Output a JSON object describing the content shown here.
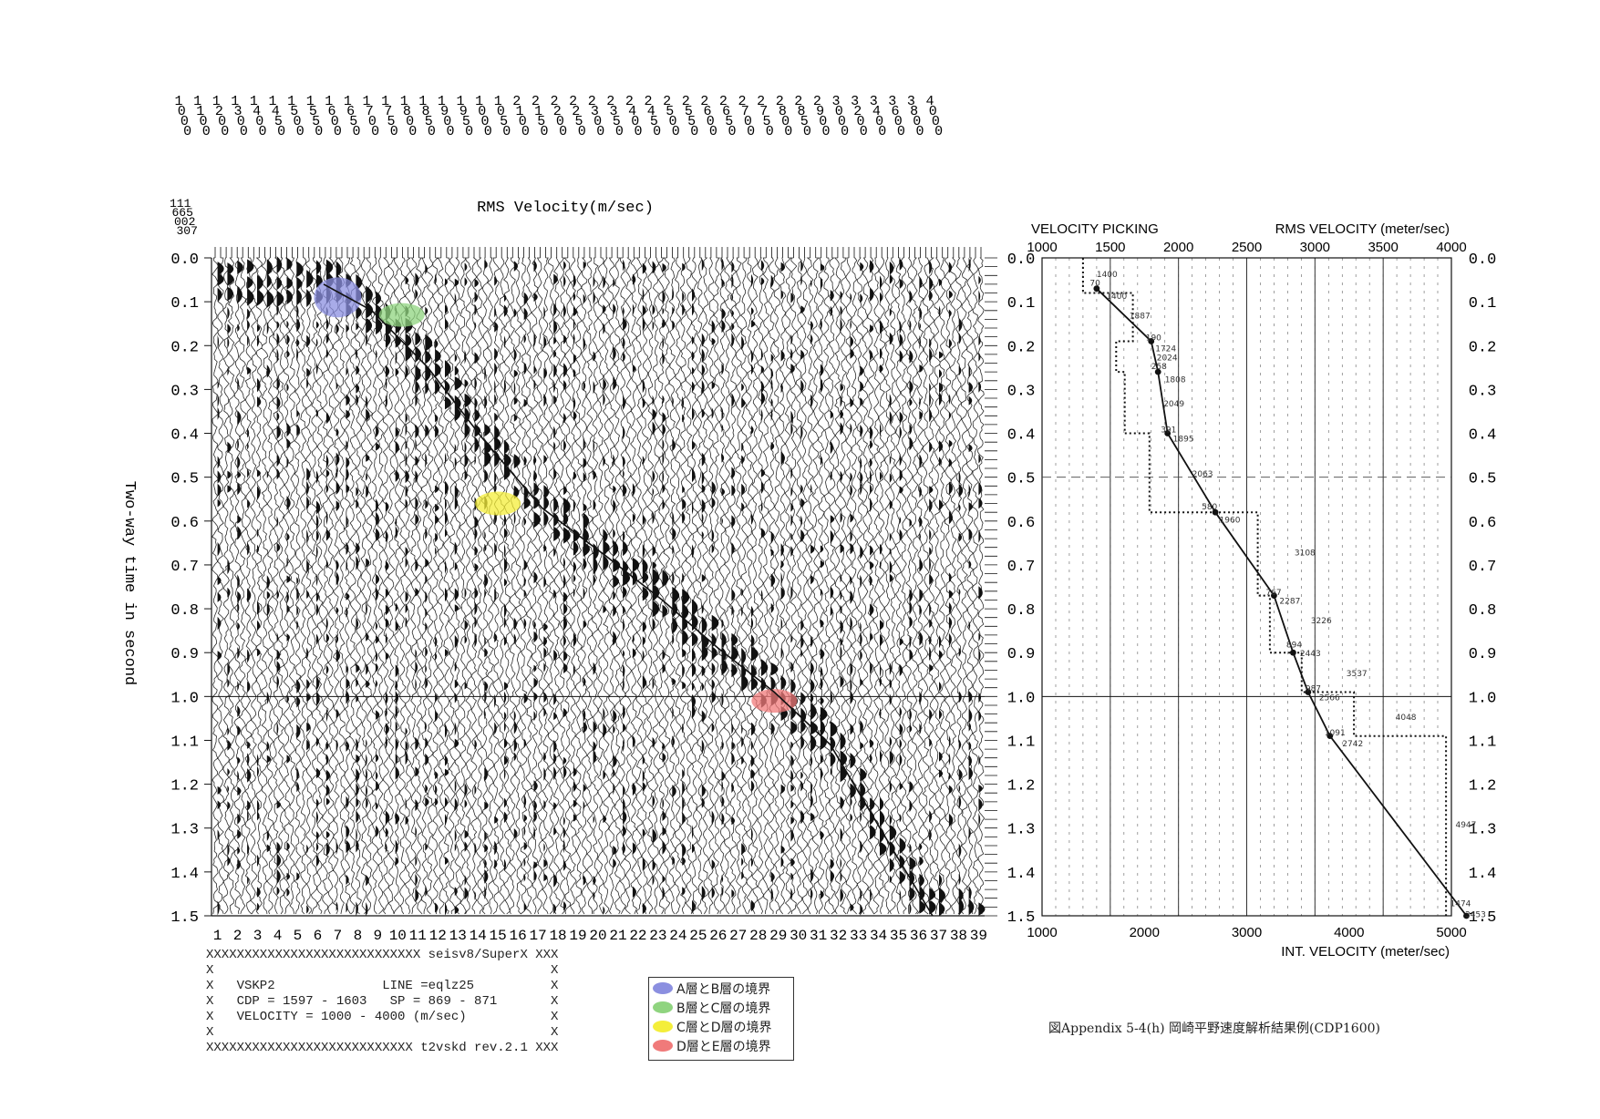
{
  "header_digits": [
    "1",
    "1",
    "1",
    "1",
    "1",
    "1",
    "1",
    "1",
    "1",
    "1",
    "1",
    "1",
    "1",
    "1",
    "1",
    "1",
    "1",
    "1",
    "2",
    "2",
    "2",
    "2",
    "2",
    "2",
    "2",
    "2",
    "2",
    "2",
    "2",
    "2",
    "2",
    "2",
    "2",
    "2",
    "2",
    "3",
    "3",
    "3",
    "3",
    "3",
    "4"
  ],
  "header_digits_row2": [
    "0",
    "1",
    "2",
    "3",
    "4",
    "4",
    "5",
    "5",
    "6",
    "6",
    "7",
    "7",
    "8",
    "8",
    "9",
    "9",
    "0",
    "0",
    "1",
    "1",
    "2",
    "2",
    "3",
    "3",
    "4",
    "4",
    "5",
    "5",
    "6",
    "6",
    "7",
    "7",
    "8",
    "8",
    "9",
    "0",
    "2",
    "4",
    "6",
    "8",
    "0"
  ],
  "header_digits_row3": [
    "0",
    "0",
    "0",
    "0",
    "0",
    "5",
    "0",
    "5",
    "0",
    "5",
    "0",
    "5",
    "0",
    "5",
    "0",
    "5",
    "0",
    "5",
    "0",
    "5",
    "0",
    "5",
    "0",
    "5",
    "0",
    "5",
    "0",
    "5",
    "0",
    "5",
    "0",
    "5",
    "0",
    "5",
    "0",
    "0",
    "0",
    "0",
    "0",
    "0",
    "0"
  ],
  "header_digits_row4": [
    "0",
    "0",
    "0",
    "0",
    "0",
    "0",
    "0",
    "0",
    "0",
    "0",
    "0",
    "0",
    "0",
    "0",
    "0",
    "0",
    "0",
    "0",
    "0",
    "0",
    "0",
    "0",
    "0",
    "0",
    "0",
    "0",
    "0",
    "0",
    "0",
    "0",
    "0",
    "0",
    "0",
    "0",
    "0",
    "0",
    "0",
    "0",
    "0",
    "0",
    "0"
  ],
  "corner_digits": [
    "111",
    "665",
    "002",
    "307"
  ],
  "left_panel": {
    "title": "RMS Velocity(m/sec)",
    "ylabel": "Two-way time in second",
    "y_ticks": [
      "0.0",
      "0.1",
      "0.2",
      "0.3",
      "0.4",
      "0.5",
      "0.6",
      "0.7",
      "0.8",
      "0.9",
      "1.0",
      "1.1",
      "1.2",
      "1.3",
      "1.4",
      "1.5"
    ],
    "x_ticks": [
      "1",
      "2",
      "3",
      "4",
      "5",
      "6",
      "7",
      "8",
      "9",
      "10",
      "11",
      "12",
      "13",
      "14",
      "15",
      "16",
      "17",
      "18",
      "19",
      "20",
      "21",
      "22",
      "23",
      "24",
      "25",
      "26",
      "27",
      "28",
      "29",
      "30",
      "31",
      "32",
      "33",
      "34",
      "35",
      "36",
      "37",
      "38",
      "39"
    ]
  },
  "info_block": {
    "line1": "XXXXXXXXXXXXXXXXXXXXXXXXXXXX seisv8/SuperX XXX",
    "line2": "X                                            X",
    "line3": "X   VSKP2              LINE =eqlz25          X",
    "line4": "X   CDP = 1597 - 1603   SP = 869 - 871       X",
    "line5": "X   VELOCITY = 1000 - 4000 (m/sec)           X",
    "line6": "X                                            X",
    "line7": "XXXXXXXXXXXXXXXXXXXXXXXXXXX t2vskd rev.2.1 XXX"
  },
  "legend": [
    {
      "label": "A層とB層の境界",
      "color": "#8b8fe0"
    },
    {
      "label": "B層とC層の境界",
      "color": "#8fd47f"
    },
    {
      "label": "C層とD層の境界",
      "color": "#f4ee3a"
    },
    {
      "label": "D層とE層の境界",
      "color": "#f07a7a"
    }
  ],
  "caption": "図Appendix 5-4(h)   岡崎平野速度解析結果例(CDP1600)",
  "chart_data": [
    {
      "type": "heatmap",
      "title": "RMS Velocity(m/sec)",
      "xlabel": "",
      "ylabel": "Two-way time in second",
      "xlim": [
        1,
        39
      ],
      "ylim": [
        0.0,
        1.5
      ],
      "boundary_markers": [
        {
          "name": "A層とB層の境界",
          "x": 7.0,
          "y": 0.09
        },
        {
          "name": "B層とC層の境界",
          "x": 10.2,
          "y": 0.13
        },
        {
          "name": "C層とD層の境界",
          "x": 15.0,
          "y": 0.56
        },
        {
          "name": "D層とE層の境界",
          "x": 28.8,
          "y": 1.01
        }
      ],
      "picked_curve": {
        "x": [
          6.3,
          8.7,
          11.5,
          14.2,
          17.2,
          20.4,
          23.2,
          26.0,
          28.8,
          31.6,
          34.2,
          36.7
        ],
        "y": [
          0.06,
          0.12,
          0.25,
          0.41,
          0.57,
          0.68,
          0.78,
          0.89,
          0.99,
          1.11,
          1.31,
          1.5
        ]
      }
    },
    {
      "type": "line",
      "title": "VELOCITY PICKING",
      "top_axis_label": "RMS VELOCITY (meter/sec)",
      "top_ticks": [
        "1000",
        "1500",
        "2000",
        "2500",
        "3000",
        "3500",
        "4000"
      ],
      "top_xlim": [
        1000,
        4000
      ],
      "bottom_axis_label": "INT. VELOCITY (meter/sec)",
      "bottom_ticks": [
        "1000",
        "2000",
        "3000",
        "4000",
        "5000"
      ],
      "bottom_xlim": [
        1000,
        5000
      ],
      "y_ticks": [
        "0.0",
        "0.1",
        "0.2",
        "0.3",
        "0.4",
        "0.5",
        "0.6",
        "0.7",
        "0.8",
        "0.9",
        "1.0",
        "1.1",
        "1.2",
        "1.3",
        "1.4",
        "1.5"
      ],
      "ylim": [
        0.0,
        1.5
      ],
      "series": [
        {
          "name": "RMS VELOCITY",
          "time": [
            0.07,
            0.19,
            0.26,
            0.4,
            0.58,
            0.77,
            0.9,
            0.99,
            1.09,
            1.5
          ],
          "velocity": [
            1400,
            1800,
            1850,
            1920,
            2270,
            2700,
            2840,
            2950,
            3110,
            4110
          ]
        },
        {
          "name": "INT. VELOCITY",
          "time": [
            0.0,
            0.06,
            0.08,
            0.19,
            0.26,
            0.4,
            0.58,
            0.77,
            0.9,
            0.99,
            1.09,
            1.5
          ],
          "velocity": [
            1400,
            1400,
            1887,
            1724,
            1808,
            2049,
            3108,
            3226,
            3537,
            4048,
            4947,
            4947
          ]
        }
      ],
      "point_labels": [
        {
          "text": "1400",
          "time": 0.035,
          "velocity": 1400
        },
        {
          "text": "70",
          "time": 0.055,
          "velocity": 1350
        },
        {
          "text": "1400",
          "time": 0.085,
          "velocity": 1470
        },
        {
          "text": "1887",
          "time": 0.13,
          "velocity": 1640
        },
        {
          "text": "190",
          "time": 0.18,
          "velocity": 1760
        },
        {
          "text": "1724",
          "time": 0.205,
          "velocity": 1830
        },
        {
          "text": "2024",
          "time": 0.225,
          "velocity": 1840
        },
        {
          "text": "258",
          "time": 0.245,
          "velocity": 1800
        },
        {
          "text": "1808",
          "time": 0.275,
          "velocity": 1900
        },
        {
          "text": "2049",
          "time": 0.33,
          "velocity": 1890
        },
        {
          "text": "391",
          "time": 0.39,
          "velocity": 1870
        },
        {
          "text": "1895",
          "time": 0.41,
          "velocity": 1960
        },
        {
          "text": "2063",
          "time": 0.49,
          "velocity": 2100
        },
        {
          "text": "580",
          "time": 0.565,
          "velocity": 2170
        },
        {
          "text": "1960",
          "time": 0.595,
          "velocity": 2300
        },
        {
          "text": "3108",
          "time": 0.67,
          "velocity": 2850
        },
        {
          "text": "767",
          "time": 0.76,
          "velocity": 2640
        },
        {
          "text": "2287",
          "time": 0.78,
          "velocity": 2740
        },
        {
          "text": "3226",
          "time": 0.825,
          "velocity": 2970
        },
        {
          "text": "894",
          "time": 0.88,
          "velocity": 2790
        },
        {
          "text": "2443",
          "time": 0.9,
          "velocity": 2890
        },
        {
          "text": "3537",
          "time": 0.945,
          "velocity": 3230
        },
        {
          "text": "987",
          "time": 0.98,
          "velocity": 2930
        },
        {
          "text": "2566",
          "time": 1.0,
          "velocity": 3030
        },
        {
          "text": "4048",
          "time": 1.045,
          "velocity": 3590
        },
        {
          "text": "1091",
          "time": 1.08,
          "velocity": 3070
        },
        {
          "text": "2742",
          "time": 1.105,
          "velocity": 3200
        },
        {
          "text": "4947",
          "time": 1.29,
          "velocity": 4030
        },
        {
          "text": "1474",
          "time": 1.47,
          "velocity": 3990
        },
        {
          "text": "3453",
          "time": 1.495,
          "velocity": 4100
        }
      ]
    }
  ]
}
